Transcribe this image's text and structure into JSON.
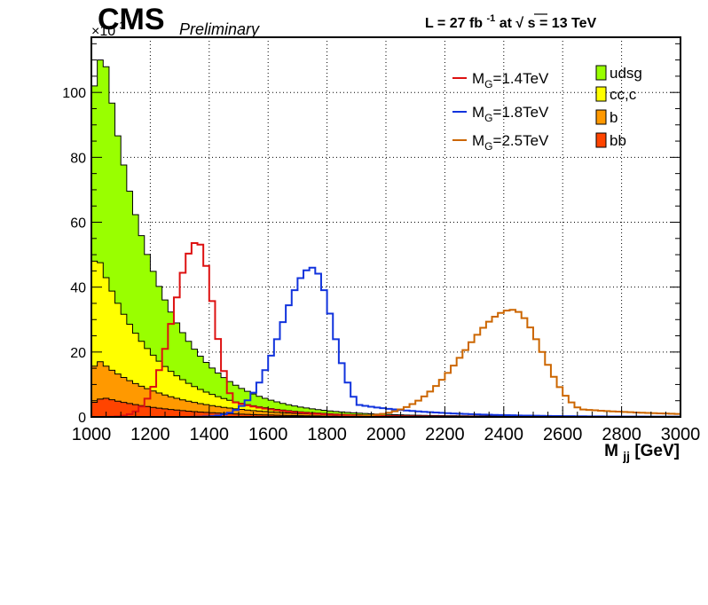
{
  "header": {
    "experiment": "CMS",
    "status": "Preliminary",
    "lumi": {
      "prefix": "L = 27 fb",
      "exponent": "-1",
      "at": " at ",
      "sqrt_symbol": "√",
      "energy_var": "s",
      "energy_value": " = 13 TeV"
    }
  },
  "chart_data": {
    "type": "histogram",
    "title": "",
    "xlabel": {
      "main": "M",
      "subscript": "jj",
      "tail": "[GeV]"
    },
    "ylabel": "",
    "y_multiplier": {
      "prefix": "×10",
      "exponent": "3"
    },
    "xlim": [
      1000,
      3000
    ],
    "ylim": [
      0,
      117
    ],
    "bin_width": 20,
    "grid": true,
    "legend_position": "top-right",
    "xticks": [
      1000,
      1200,
      1400,
      1600,
      1800,
      2000,
      2200,
      2400,
      2600,
      2800,
      3000
    ],
    "yticks": [
      0,
      20,
      40,
      60,
      80,
      100
    ],
    "stacked": [
      {
        "name": "udsg",
        "color": "#99ff00",
        "peak_x": 1040,
        "peak_y": 114,
        "edge_x": 1000,
        "edge_y": 98,
        "rise": 20,
        "slope": 0.0055,
        "tail_y": 0.2
      },
      {
        "name": "cc,c",
        "color": "#ffff00",
        "peak_x": 1020,
        "peak_y": 50,
        "edge_x": 1000,
        "edge_y": 46,
        "rise": 30,
        "slope": 0.0051,
        "tail_y": 0.1
      },
      {
        "name": "b",
        "color": "#ff9900",
        "peak_x": 1030,
        "peak_y": 17,
        "edge_x": 1000,
        "edge_y": 15,
        "rise": 30,
        "slope": 0.0042,
        "tail_y": 0.05
      },
      {
        "name": "bb",
        "color": "#ff4400",
        "peak_x": 1040,
        "peak_y": 6,
        "edge_x": 1000,
        "edge_y": 4,
        "rise": 40,
        "slope": 0.0042,
        "tail_y": 0.02
      }
    ],
    "signals": [
      {
        "label_main": "M",
        "label_sub": "G",
        "label_tail": "=1.4TeV",
        "color": "#dd1111",
        "mass": 1360,
        "peak": 54,
        "sigma_left": 80,
        "sigma_right": 55,
        "tail_amp": 7,
        "tail_start": 1410,
        "tail_decay": 180
      },
      {
        "label_main": "M",
        "label_sub": "G",
        "label_tail": "=1.8TeV",
        "color": "#1133dd",
        "mass": 1750,
        "peak": 46,
        "sigma_left": 105,
        "sigma_right": 70,
        "tail_amp": 5,
        "tail_start": 1830,
        "tail_decay": 260
      },
      {
        "label_main": "M",
        "label_sub": "G",
        "label_tail": "=2.5TeV",
        "color": "#cc6600",
        "mass": 2430,
        "peak": 33,
        "sigma_left": 165,
        "sigma_right": 100,
        "tail_amp": 3,
        "tail_start": 2570,
        "tail_decay": 360
      }
    ]
  }
}
